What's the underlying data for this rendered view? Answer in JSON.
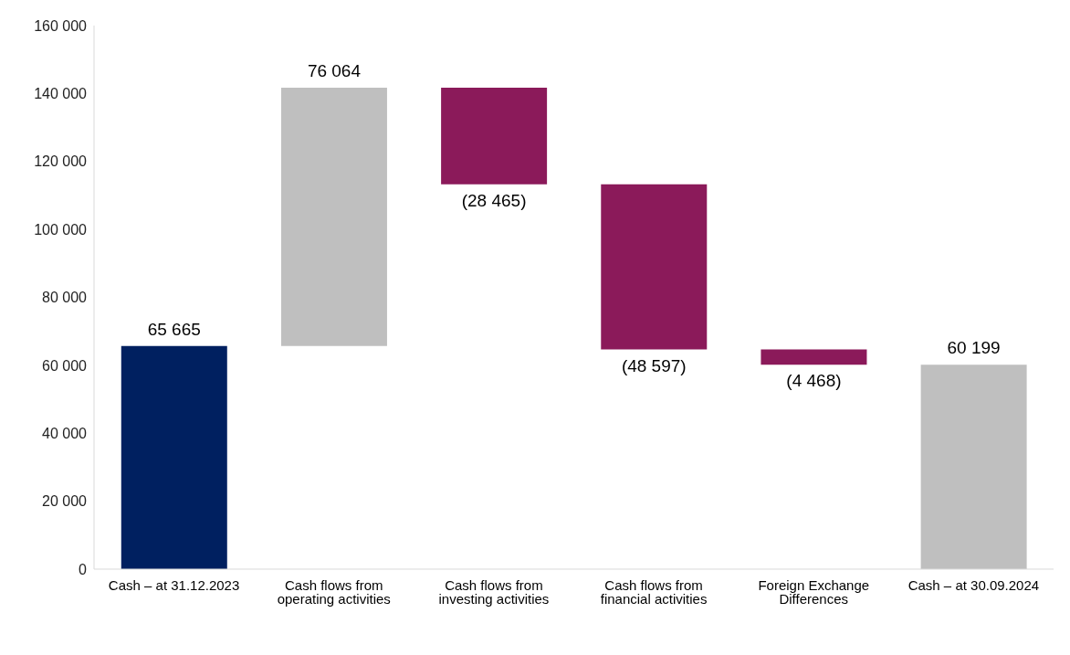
{
  "chart_data": {
    "type": "bar",
    "categories": [
      "Cash – at 31.12.2023",
      "Cash flows from operating activities",
      "Cash flows from investing activities",
      "Cash flows from financial activities",
      "Foreign Exchange Differences",
      "Cash – at 30.09.2024"
    ],
    "values": [
      65665,
      76064,
      -28465,
      -48597,
      -4468,
      60199
    ],
    "base": [
      0,
      65665,
      141729,
      113264,
      64667,
      0
    ],
    "colors": [
      "#002060",
      "#bfbfbf",
      "#8b1a5a",
      "#8b1a5a",
      "#8b1a5a",
      "#bfbfbf"
    ],
    "value_labels": [
      "65 665",
      "76 064",
      "(28 465)",
      "(48 597)",
      "(4 468)",
      "60 199"
    ],
    "ylim": [
      0,
      160000
    ],
    "yticks": [
      {
        "value": 0,
        "label": "0"
      },
      {
        "value": 20000,
        "label": "20 000"
      },
      {
        "value": 40000,
        "label": "40 000"
      },
      {
        "value": 60000,
        "label": "60 000"
      },
      {
        "value": 80000,
        "label": "80 000"
      },
      {
        "value": 100000,
        "label": "100 000"
      },
      {
        "value": 120000,
        "label": "120 000"
      },
      {
        "value": 140000,
        "label": "140 000"
      },
      {
        "value": 160000,
        "label": "160 000"
      }
    ],
    "grid": false
  }
}
